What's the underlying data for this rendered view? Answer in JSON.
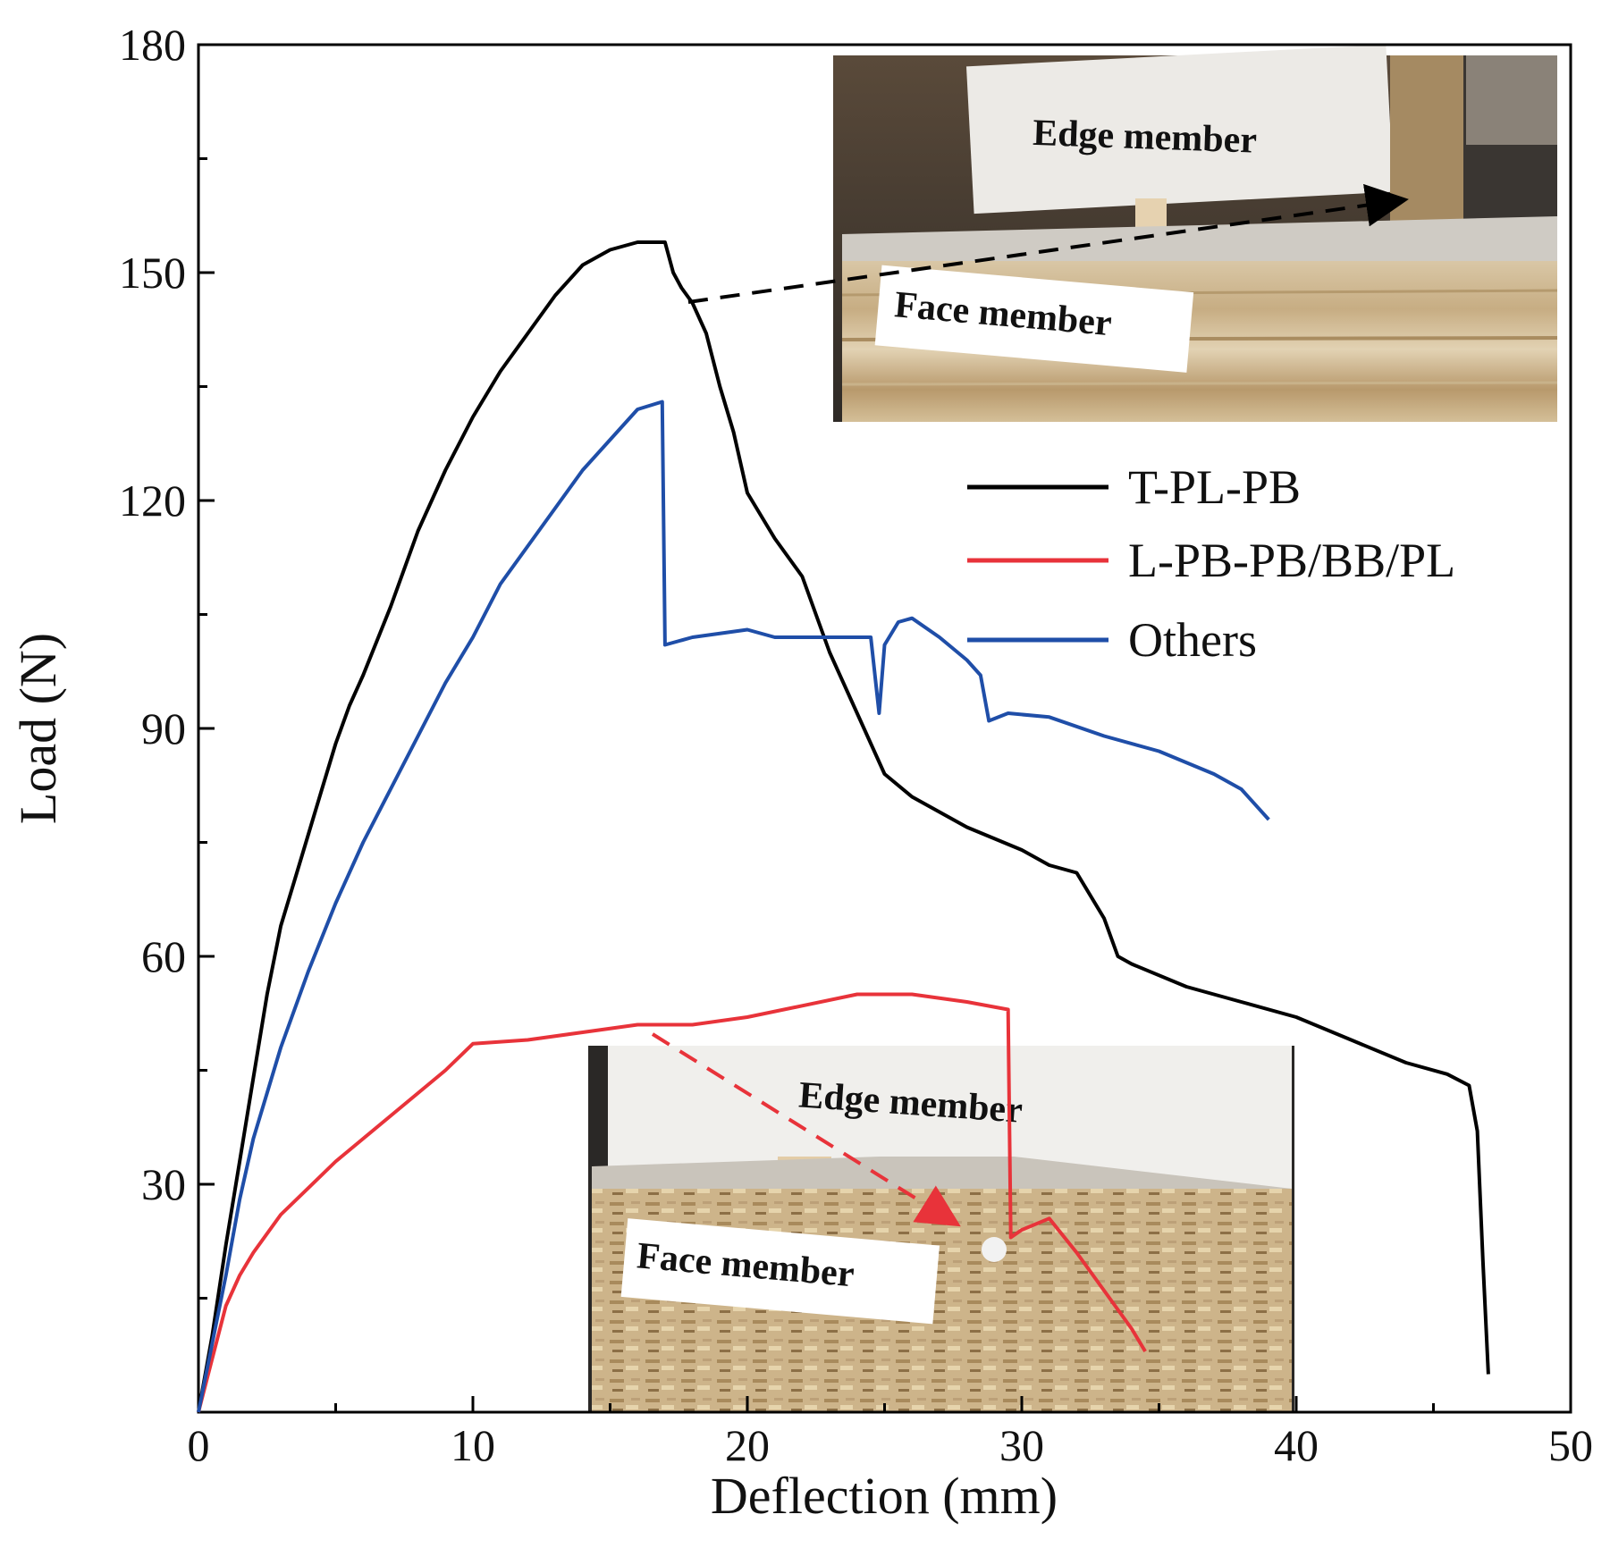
{
  "chart_data": {
    "type": "line",
    "xlabel": "Deflection (mm)",
    "ylabel": "Load (N)",
    "xlim": [
      0,
      50
    ],
    "ylim": [
      0,
      180
    ],
    "xticks": [
      0,
      10,
      20,
      30,
      40,
      50
    ],
    "yticks": [
      30,
      60,
      90,
      120,
      150,
      180
    ],
    "x_minor_step": 5,
    "y_minor_step": 15,
    "grid": false,
    "legend_position": "right",
    "series": [
      {
        "name": "T-PL-PB",
        "color": "#000000",
        "points": [
          [
            0,
            0
          ],
          [
            0.5,
            10
          ],
          [
            1,
            22
          ],
          [
            1.5,
            33
          ],
          [
            2,
            44
          ],
          [
            2.5,
            55
          ],
          [
            3,
            64
          ],
          [
            3.5,
            70
          ],
          [
            4,
            76
          ],
          [
            4.5,
            82
          ],
          [
            5,
            88
          ],
          [
            5.5,
            93
          ],
          [
            6,
            97
          ],
          [
            7,
            106
          ],
          [
            8,
            116
          ],
          [
            9,
            124
          ],
          [
            10,
            131
          ],
          [
            11,
            137
          ],
          [
            12,
            142
          ],
          [
            13,
            147
          ],
          [
            14,
            151
          ],
          [
            15,
            153
          ],
          [
            16,
            154
          ],
          [
            17,
            154
          ],
          [
            17.3,
            150
          ],
          [
            17.6,
            148
          ],
          [
            18,
            146
          ],
          [
            18.5,
            142
          ],
          [
            19,
            135
          ],
          [
            19.5,
            129
          ],
          [
            20,
            121
          ],
          [
            21,
            115
          ],
          [
            22,
            110
          ],
          [
            23,
            100
          ],
          [
            24,
            92
          ],
          [
            25,
            84
          ],
          [
            26,
            81
          ],
          [
            28,
            77
          ],
          [
            30,
            74
          ],
          [
            31,
            72
          ],
          [
            32,
            71
          ],
          [
            33,
            65
          ],
          [
            33.5,
            60
          ],
          [
            34,
            59
          ],
          [
            36,
            56
          ],
          [
            38,
            54
          ],
          [
            40,
            52
          ],
          [
            42,
            49
          ],
          [
            44,
            46
          ],
          [
            45.5,
            44.5
          ],
          [
            46.3,
            43
          ],
          [
            46.6,
            37
          ],
          [
            46.8,
            20
          ],
          [
            47,
            5
          ]
        ]
      },
      {
        "name": "L-PB-PB/BB/PL",
        "color": "#e8333a",
        "points": [
          [
            0,
            0
          ],
          [
            0.5,
            7
          ],
          [
            1,
            14
          ],
          [
            1.5,
            18
          ],
          [
            2,
            21
          ],
          [
            3,
            26
          ],
          [
            4,
            29.5
          ],
          [
            5,
            33
          ],
          [
            6,
            36
          ],
          [
            7,
            39
          ],
          [
            8,
            42
          ],
          [
            9,
            45
          ],
          [
            10,
            48.5
          ],
          [
            12,
            49
          ],
          [
            14,
            50
          ],
          [
            16,
            51
          ],
          [
            18,
            51
          ],
          [
            20,
            52
          ],
          [
            22,
            53.5
          ],
          [
            24,
            55
          ],
          [
            26,
            55
          ],
          [
            28,
            54
          ],
          [
            29.5,
            53
          ],
          [
            29.6,
            23
          ],
          [
            30,
            24
          ],
          [
            31,
            25.5
          ],
          [
            32,
            21
          ],
          [
            33,
            16
          ],
          [
            34,
            11
          ],
          [
            34.5,
            8
          ]
        ]
      },
      {
        "name": "Others",
        "color": "#1f4ea8",
        "points": [
          [
            0,
            0
          ],
          [
            0.5,
            9
          ],
          [
            1,
            18
          ],
          [
            1.5,
            28
          ],
          [
            2,
            36
          ],
          [
            3,
            48
          ],
          [
            4,
            58
          ],
          [
            5,
            67
          ],
          [
            6,
            75
          ],
          [
            7,
            82
          ],
          [
            8,
            89
          ],
          [
            9,
            96
          ],
          [
            10,
            102
          ],
          [
            11,
            109
          ],
          [
            12,
            114
          ],
          [
            13,
            119
          ],
          [
            14,
            124
          ],
          [
            15,
            128
          ],
          [
            16,
            132
          ],
          [
            16.9,
            133
          ],
          [
            17,
            101
          ],
          [
            18,
            102
          ],
          [
            20,
            103
          ],
          [
            21,
            102
          ],
          [
            23,
            102
          ],
          [
            24.5,
            102
          ],
          [
            24.8,
            92
          ],
          [
            25,
            101
          ],
          [
            25.5,
            104
          ],
          [
            26,
            104.5
          ],
          [
            27,
            102
          ],
          [
            28,
            99
          ],
          [
            28.5,
            97
          ],
          [
            28.8,
            91
          ],
          [
            29.5,
            92
          ],
          [
            31,
            91.5
          ],
          [
            33,
            89
          ],
          [
            35,
            87
          ],
          [
            37,
            84
          ],
          [
            38,
            82
          ],
          [
            39,
            78
          ]
        ]
      }
    ],
    "annotations": [
      {
        "label_top": "Edge member",
        "label_bottom": "Face member",
        "attached_series": "T-PL-PB",
        "arrow_style": "dashed"
      },
      {
        "label_top": "Edge member",
        "label_bottom": "Face member",
        "attached_series": "L-PB-PB/BB/PL",
        "arrow_style": "dashed"
      }
    ]
  }
}
